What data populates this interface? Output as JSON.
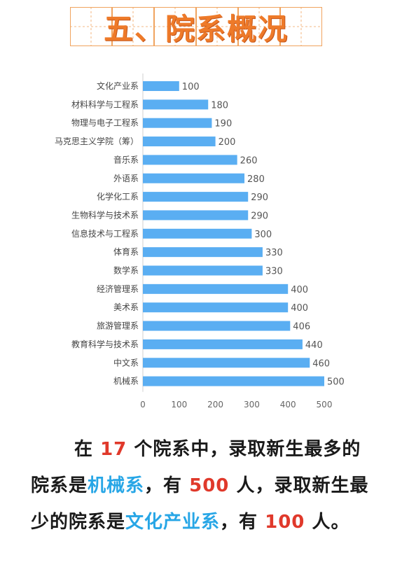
{
  "title": {
    "text": "五、院系概况",
    "color": "#ee7a29",
    "grid_color": "#f0a35e"
  },
  "chart_data": {
    "type": "bar",
    "orientation": "horizontal",
    "bar_color": "#5aaef2",
    "categories": [
      "文化产业系",
      "材料科学与工程系",
      "物理与电子工程系",
      "马克思主义学院（筹）",
      "音乐系",
      "外语系",
      "化学化工系",
      "生物科学与技术系",
      "信息技术与工程系",
      "体育系",
      "数学系",
      "经济管理系",
      "美术系",
      "旅游管理系",
      "教育科学与技术系",
      "中文系",
      "机械系"
    ],
    "values": [
      100,
      180,
      190,
      200,
      260,
      280,
      290,
      290,
      300,
      330,
      330,
      400,
      400,
      406,
      440,
      460,
      500
    ],
    "xlim": [
      0,
      500
    ],
    "x_ticks": [
      0,
      100,
      200,
      300,
      400,
      500
    ],
    "grid": false,
    "title": "",
    "xlabel": "",
    "ylabel": ""
  },
  "summary": {
    "part1": "在",
    "count": "17",
    "part2": "个院系中，录取新生最多的院系是",
    "max_dept": "机械系",
    "part3": "，有",
    "max_num": "500",
    "part4": "人，录取新生最少的院系是",
    "min_dept": "文化产业系",
    "part5": "，有",
    "min_num": "100",
    "part6": "人。",
    "highlight_red": "#e0392b",
    "highlight_blue": "#27a6e6"
  }
}
